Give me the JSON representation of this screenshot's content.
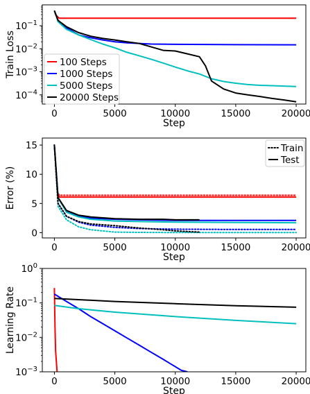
{
  "chart_data": [
    {
      "type": "line",
      "title": "",
      "xlabel": "Step",
      "ylabel": "Train Loss",
      "yscale": "log",
      "xlim": [
        -1000,
        20800
      ],
      "ylim": [
        4e-05,
        0.8
      ],
      "xticks": [
        0,
        5000,
        10000,
        15000,
        20000
      ],
      "yticks": [
        0.0001,
        0.001,
        0.01,
        0.1
      ],
      "ytick_labels": [
        [
          "10",
          "−4"
        ],
        [
          "10",
          "−3"
        ],
        [
          "10",
          "−2"
        ],
        [
          "10",
          "−1"
        ]
      ],
      "legend": {
        "position": "lower-left",
        "entries": [
          "100 Steps",
          "1000 Steps",
          "5000 Steps",
          "20000 Steps"
        ]
      },
      "series": [
        {
          "name": "100 Steps",
          "color": "#ff0000",
          "points": [
            [
              0,
              0.45
            ],
            [
              100,
              0.3
            ],
            [
              400,
              0.21
            ],
            [
              20000,
              0.21
            ]
          ]
        },
        {
          "name": "1000 Steps",
          "color": "#0000ff",
          "points": [
            [
              0,
              0.45
            ],
            [
              300,
              0.17
            ],
            [
              1000,
              0.08
            ],
            [
              2000,
              0.04
            ],
            [
              3000,
              0.03
            ],
            [
              4000,
              0.024
            ],
            [
              5000,
              0.02
            ],
            [
              6000,
              0.018
            ],
            [
              8000,
              0.016
            ],
            [
              10000,
              0.0155
            ],
            [
              15000,
              0.015
            ],
            [
              20000,
              0.0148
            ]
          ]
        },
        {
          "name": "5000 Steps",
          "color": "#00bfbf",
          "points": [
            [
              0,
              0.45
            ],
            [
              300,
              0.15
            ],
            [
              1000,
              0.07
            ],
            [
              2000,
              0.04
            ],
            [
              3000,
              0.025
            ],
            [
              4000,
              0.016
            ],
            [
              5000,
              0.011
            ],
            [
              6000,
              0.007
            ],
            [
              7000,
              0.005
            ],
            [
              8000,
              0.0035
            ],
            [
              9000,
              0.0024
            ],
            [
              10000,
              0.0016
            ],
            [
              11000,
              0.0011
            ],
            [
              12000,
              0.0008
            ],
            [
              13000,
              0.0005
            ],
            [
              14000,
              0.00038
            ],
            [
              15000,
              0.00032
            ],
            [
              16000,
              0.00028
            ],
            [
              17000,
              0.00026
            ],
            [
              18000,
              0.00025
            ],
            [
              19000,
              0.00024
            ],
            [
              20000,
              0.00023
            ]
          ]
        },
        {
          "name": "20000 Steps",
          "color": "#000000",
          "points": [
            [
              0,
              0.45
            ],
            [
              300,
              0.17
            ],
            [
              1000,
              0.09
            ],
            [
              2000,
              0.05
            ],
            [
              3000,
              0.035
            ],
            [
              4000,
              0.028
            ],
            [
              5000,
              0.024
            ],
            [
              6000,
              0.02
            ],
            [
              7000,
              0.017
            ],
            [
              8000,
              0.012
            ],
            [
              9000,
              0.0085
            ],
            [
              10000,
              0.008
            ],
            [
              11000,
              0.006
            ],
            [
              12000,
              0.0045
            ],
            [
              12500,
              0.0018
            ],
            [
              13000,
              0.0004
            ],
            [
              14000,
              0.00018
            ],
            [
              15000,
              0.00012
            ],
            [
              16000,
              0.0001
            ],
            [
              17000,
              8.5e-05
            ],
            [
              18000,
              7e-05
            ],
            [
              19000,
              6e-05
            ],
            [
              20000,
              5e-05
            ]
          ]
        }
      ]
    },
    {
      "type": "line",
      "title": "",
      "xlabel": "Step",
      "ylabel": "Error (%)",
      "xlim": [
        -1000,
        20800
      ],
      "ylim": [
        -0.9,
        16.2
      ],
      "xticks": [
        0,
        5000,
        10000,
        15000,
        20000
      ],
      "yticks": [
        0,
        5,
        10,
        15
      ],
      "legend": {
        "position": "top-right",
        "entries": [
          {
            "label": "Train",
            "style": "dotted"
          },
          {
            "label": "Test",
            "style": "solid"
          }
        ]
      },
      "series": [
        {
          "name": "100 Steps",
          "split": "Test",
          "color": "#ff0000",
          "points": [
            [
              0,
              15
            ],
            [
              250,
              7
            ],
            [
              400,
              6.1
            ],
            [
              20000,
              6.1
            ]
          ]
        },
        {
          "name": "100 Steps",
          "split": "Train",
          "color": "#ff0000",
          "points": [
            [
              0,
              15
            ],
            [
              250,
              7
            ],
            [
              400,
              6.4
            ],
            [
              20000,
              6.4
            ]
          ]
        },
        {
          "name": "1000 Steps",
          "split": "Test",
          "color": "#0000ff",
          "points": [
            [
              0,
              15
            ],
            [
              300,
              6
            ],
            [
              1000,
              3.6
            ],
            [
              2000,
              2.8
            ],
            [
              3000,
              2.5
            ],
            [
              5000,
              2.3
            ],
            [
              7000,
              2.2
            ],
            [
              10000,
              2.1
            ],
            [
              15000,
              2.1
            ],
            [
              20000,
              2.1
            ]
          ]
        },
        {
          "name": "1000 Steps",
          "split": "Train",
          "color": "#0000ff",
          "points": [
            [
              0,
              15
            ],
            [
              300,
              5
            ],
            [
              1000,
              2.8
            ],
            [
              2000,
              1.8
            ],
            [
              3000,
              1.3
            ],
            [
              5000,
              0.9
            ],
            [
              7000,
              0.7
            ],
            [
              10000,
              0.6
            ],
            [
              15000,
              0.55
            ],
            [
              20000,
              0.55
            ]
          ]
        },
        {
          "name": "5000 Steps",
          "split": "Test",
          "color": "#00bfbf",
          "points": [
            [
              0,
              15
            ],
            [
              300,
              6
            ],
            [
              1000,
              3.5
            ],
            [
              2000,
              2.7
            ],
            [
              3000,
              2.3
            ],
            [
              5000,
              2
            ],
            [
              7000,
              1.9
            ],
            [
              10000,
              1.8
            ],
            [
              15000,
              1.75
            ],
            [
              20000,
              1.7
            ]
          ]
        },
        {
          "name": "5000 Steps",
          "split": "Train",
          "color": "#00bfbf",
          "points": [
            [
              0,
              15
            ],
            [
              300,
              4.5
            ],
            [
              1000,
              2.2
            ],
            [
              2000,
              1
            ],
            [
              3000,
              0.5
            ],
            [
              5000,
              0.1
            ],
            [
              7000,
              0.05
            ],
            [
              10000,
              0.02
            ],
            [
              15000,
              0.01
            ],
            [
              20000,
              0.01
            ]
          ]
        },
        {
          "name": "20000 Steps",
          "split": "Test",
          "color": "#000000",
          "points": [
            [
              0,
              15
            ],
            [
              300,
              6
            ],
            [
              1000,
              3.8
            ],
            [
              2000,
              3
            ],
            [
              3000,
              2.7
            ],
            [
              5000,
              2.4
            ],
            [
              7000,
              2.3
            ],
            [
              9000,
              2.3
            ],
            [
              10000,
              2.2
            ],
            [
              12000,
              2.2
            ]
          ]
        },
        {
          "name": "20000 Steps",
          "split": "Train",
          "color": "#000000",
          "points": [
            [
              0,
              15
            ],
            [
              300,
              5
            ],
            [
              1000,
              2.8
            ],
            [
              2000,
              1.9
            ],
            [
              3000,
              1.5
            ],
            [
              5000,
              1.2
            ],
            [
              7000,
              0.8
            ],
            [
              9000,
              0.5
            ],
            [
              10000,
              0.3
            ],
            [
              12000,
              0.1
            ]
          ]
        }
      ]
    },
    {
      "type": "line",
      "title": "",
      "xlabel": "Step",
      "ylabel": "Learning Rate",
      "yscale": "log",
      "xlim": [
        -1000,
        20800
      ],
      "ylim": [
        0.001,
        1
      ],
      "xticks": [
        0,
        5000,
        10000,
        15000,
        20000
      ],
      "yticks": [
        0.001,
        0.01,
        0.1,
        1
      ],
      "ytick_labels": [
        [
          "10",
          "−3"
        ],
        [
          "10",
          "−2"
        ],
        [
          "10",
          "−1"
        ],
        [
          "10",
          "0"
        ]
      ],
      "series": [
        {
          "name": "100 Steps",
          "color": "#ff0000",
          "points": [
            [
              0,
              0.27
            ],
            [
              50,
              0.02
            ],
            [
              100,
              0.004
            ],
            [
              220,
              0.001
            ]
          ]
        },
        {
          "name": "1000 Steps",
          "color": "#0000ff",
          "points": [
            [
              0,
              0.18
            ],
            [
              1000,
              0.11
            ],
            [
              2000,
              0.068
            ],
            [
              3000,
              0.04
            ],
            [
              4000,
              0.025
            ],
            [
              5000,
              0.0155
            ],
            [
              6000,
              0.0096
            ],
            [
              7000,
              0.006
            ],
            [
              8000,
              0.0037
            ],
            [
              9000,
              0.0023
            ],
            [
              9500,
              0.0018
            ],
            [
              10500,
              0.0011
            ],
            [
              11000,
              0.001
            ]
          ]
        },
        {
          "name": "5000 Steps",
          "color": "#00bfbf",
          "points": [
            [
              0,
              0.085
            ],
            [
              2000,
              0.068
            ],
            [
              5000,
              0.054
            ],
            [
              10000,
              0.04
            ],
            [
              15000,
              0.031
            ],
            [
              20000,
              0.025
            ]
          ]
        },
        {
          "name": "20000 Steps",
          "color": "#000000",
          "points": [
            [
              0,
              0.135
            ],
            [
              5000,
              0.11
            ],
            [
              10000,
              0.095
            ],
            [
              15000,
              0.083
            ],
            [
              20000,
              0.075
            ]
          ]
        }
      ]
    }
  ]
}
